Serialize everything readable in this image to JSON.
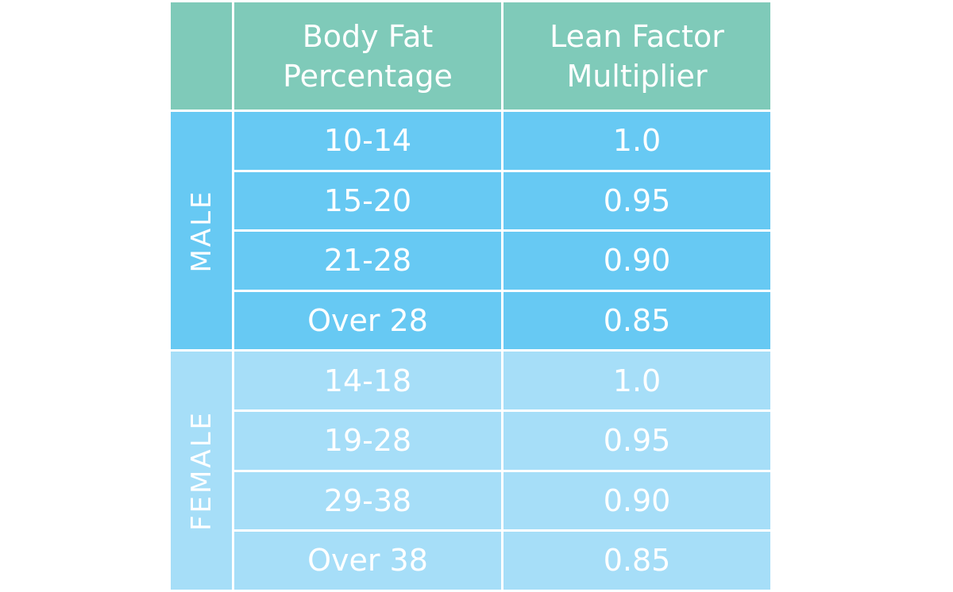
{
  "chart_data": {
    "type": "table",
    "columns": [
      "",
      "Body Fat Percentage",
      "Lean Factor Multiplier"
    ],
    "header": {
      "body_fat": [
        "Body Fat",
        "Percentage"
      ],
      "multiplier": [
        "Lean Factor",
        "Multiplier"
      ]
    },
    "groups": [
      {
        "label": "MALE",
        "color": "#67c9f3",
        "rows": [
          {
            "body_fat": "10-14",
            "multiplier": "1.0"
          },
          {
            "body_fat": "15-20",
            "multiplier": "0.95"
          },
          {
            "body_fat": "21-28",
            "multiplier": "0.90"
          },
          {
            "body_fat": "Over 28",
            "multiplier": "0.85"
          }
        ]
      },
      {
        "label": "FEMALE",
        "color": "#a6def8",
        "rows": [
          {
            "body_fat": "14-18",
            "multiplier": "1.0"
          },
          {
            "body_fat": "19-28",
            "multiplier": "0.95"
          },
          {
            "body_fat": "29-38",
            "multiplier": "0.90"
          },
          {
            "body_fat": "Over 38",
            "multiplier": "0.85"
          }
        ]
      }
    ],
    "header_color": "#7fcab9"
  }
}
